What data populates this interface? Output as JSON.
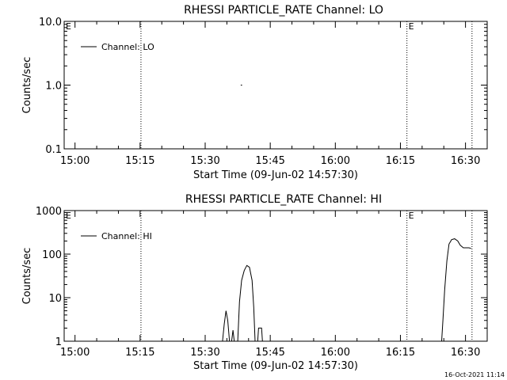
{
  "footer": {
    "timestamp": "16-Oct-2021 11:14"
  },
  "chart_data": [
    {
      "type": "line",
      "title": "RHESSI PARTICLE_RATE Channel: LO",
      "xlabel": "Start Time (09-Jun-02 14:57:30)",
      "ylabel": "Counts/sec",
      "x_ticks": [
        "15:00",
        "15:15",
        "15:30",
        "15:45",
        "16:00",
        "16:15",
        "16:30"
      ],
      "x_tick_minutes": [
        0,
        15,
        30,
        45,
        60,
        75,
        90
      ],
      "xlim_minutes": [
        -2.5,
        95
      ],
      "y_scale": "log",
      "ylim": [
        0.1,
        10
      ],
      "y_ticks": [
        "0.1",
        "1.0",
        "10.0"
      ],
      "y_tick_values": [
        0.1,
        1,
        10
      ],
      "legend": {
        "position": "top-left",
        "label": "Channel: LO"
      },
      "markers": [
        {
          "label": "",
          "minutes": 15.2
        },
        {
          "label": "E",
          "minutes": 76.5
        },
        {
          "label": "",
          "minutes": 91.5
        }
      ],
      "corner_label": "E",
      "series": [
        {
          "name": "Channel: LO",
          "points": [
            [
              38.2,
              1.0
            ],
            [
              38.5,
              1.0
            ]
          ]
        }
      ]
    },
    {
      "type": "line",
      "title": "RHESSI PARTICLE_RATE Channel: HI",
      "xlabel": "Start Time (09-Jun-02 14:57:30)",
      "ylabel": "Counts/sec",
      "x_ticks": [
        "15:00",
        "15:15",
        "15:30",
        "15:45",
        "16:00",
        "16:15",
        "16:30"
      ],
      "x_tick_minutes": [
        0,
        15,
        30,
        45,
        60,
        75,
        90
      ],
      "xlim_minutes": [
        -2.5,
        95
      ],
      "y_scale": "log",
      "ylim": [
        1,
        1000
      ],
      "y_ticks": [
        "1",
        "10",
        "100",
        "1000"
      ],
      "y_tick_values": [
        1,
        10,
        100,
        1000
      ],
      "legend": {
        "position": "top-left",
        "label": "Channel: HI"
      },
      "markers": [
        {
          "label": "",
          "minutes": 15.2
        },
        {
          "label": "E",
          "minutes": 76.5
        },
        {
          "label": "",
          "minutes": 91.5
        }
      ],
      "corner_label": "E",
      "series": [
        {
          "name": "Channel: HI",
          "segments": [
            [
              [
                34.0,
                1
              ],
              [
                34.4,
                2.5
              ],
              [
                34.8,
                5
              ],
              [
                35.2,
                3
              ],
              [
                35.6,
                1
              ]
            ],
            [
              [
                36.1,
                1
              ],
              [
                36.4,
                1.8
              ],
              [
                36.7,
                1
              ]
            ],
            [
              [
                37.5,
                1
              ],
              [
                37.9,
                8
              ],
              [
                38.4,
                25
              ],
              [
                39.0,
                42
              ],
              [
                39.6,
                55
              ],
              [
                40.2,
                50
              ],
              [
                40.8,
                25
              ],
              [
                41.2,
                6
              ],
              [
                41.5,
                1
              ]
            ],
            [
              [
                42.1,
                1
              ],
              [
                42.3,
                2
              ],
              [
                43.0,
                2
              ],
              [
                43.2,
                1
              ]
            ],
            [
              [
                84.5,
                1
              ],
              [
                84.8,
                3
              ],
              [
                85.2,
                15
              ],
              [
                85.7,
                70
              ],
              [
                86.2,
                170
              ],
              [
                86.8,
                215
              ],
              [
                87.5,
                225
              ],
              [
                88.2,
                200
              ],
              [
                88.8,
                160
              ],
              [
                89.5,
                140
              ],
              [
                90.0,
                140
              ],
              [
                90.8,
                140
              ],
              [
                91.3,
                135
              ]
            ]
          ]
        }
      ]
    }
  ]
}
